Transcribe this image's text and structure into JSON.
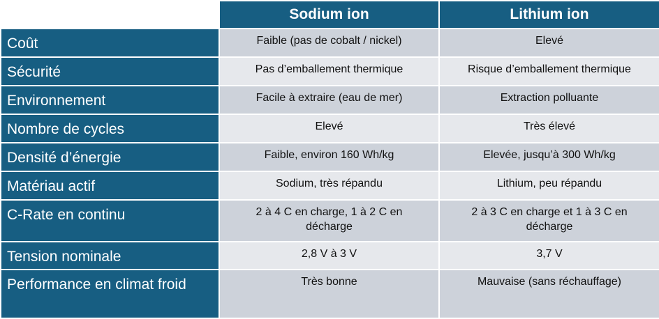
{
  "header": {
    "col1": "Sodium ion",
    "col2": "Lithium ion"
  },
  "rows": [
    {
      "label": "Coût",
      "sodium": "Faible (pas de cobalt / nickel)",
      "lithium": "Elevé"
    },
    {
      "label": "Sécurité",
      "sodium": "Pas d’emballement thermique",
      "lithium": "Risque d’emballement thermique"
    },
    {
      "label": "Environnement",
      "sodium": "Facile à extraire (eau de mer)",
      "lithium": "Extraction polluante"
    },
    {
      "label": "Nombre de cycles",
      "sodium": "Elevé",
      "lithium": "Très élevé"
    },
    {
      "label": "Densité d’énergie",
      "sodium": "Faible, environ 160 Wh/kg",
      "lithium": "Elevée, jusqu’à 300 Wh/kg"
    },
    {
      "label": "Matériau actif",
      "sodium": "Sodium, très répandu",
      "lithium": "Lithium, peu répandu"
    },
    {
      "label": "C-Rate en continu",
      "sodium": "2 à 4 C en charge, 1 à 2 C en décharge",
      "lithium": "2 à 3 C en charge et 1 à 3 C en décharge"
    },
    {
      "label": "Tension nominale",
      "sodium": "2,8 V à 3 V",
      "lithium": "3,7 V"
    },
    {
      "label": "Performance en climat froid",
      "sodium": "Très bonne",
      "lithium": "Mauvaise (sans réchauffage)"
    }
  ],
  "colors": {
    "header": "#175e82",
    "row_dark": "#cdd2da",
    "row_light": "#e6e8ec"
  }
}
